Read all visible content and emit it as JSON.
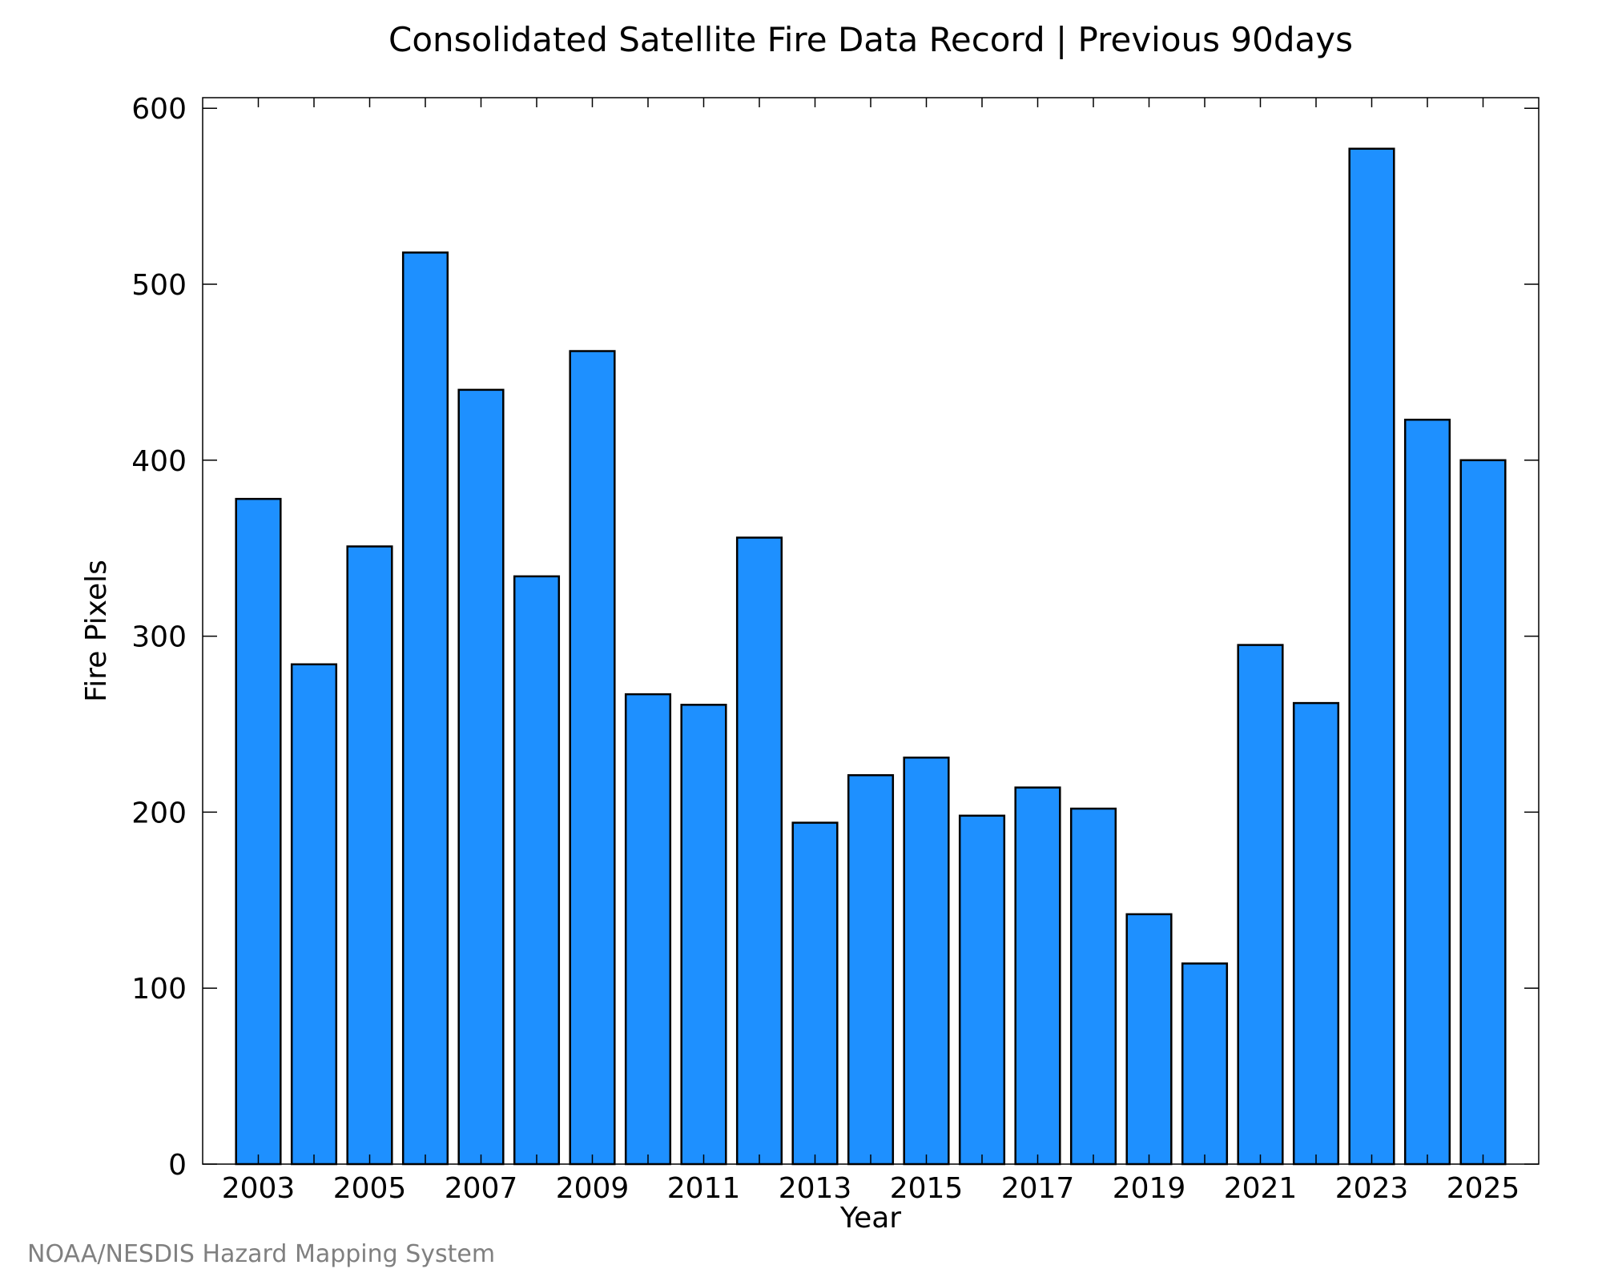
{
  "chart_data": {
    "type": "bar",
    "title": "Consolidated Satellite Fire Data Record | Previous 90days",
    "xlabel": "Year",
    "ylabel": "Fire Pixels",
    "categories": [
      "2003",
      "2004",
      "2005",
      "2006",
      "2007",
      "2008",
      "2009",
      "2010",
      "2011",
      "2012",
      "2013",
      "2014",
      "2015",
      "2016",
      "2017",
      "2018",
      "2019",
      "2020",
      "2021",
      "2022",
      "2023",
      "2024",
      "2025"
    ],
    "values": [
      378,
      284,
      351,
      518,
      440,
      334,
      462,
      267,
      261,
      356,
      194,
      221,
      231,
      198,
      214,
      202,
      142,
      114,
      295,
      262,
      577,
      423,
      400
    ],
    "x_tick_labels": [
      "2003",
      "2005",
      "2007",
      "2009",
      "2011",
      "2013",
      "2015",
      "2017",
      "2019",
      "2021",
      "2023",
      "2025"
    ],
    "y_ticks": [
      0,
      100,
      200,
      300,
      400,
      500,
      600
    ],
    "ylim": [
      0,
      606
    ],
    "xlim": [
      2002,
      2026
    ],
    "grid": false,
    "bar_color": "#1e90ff"
  },
  "credit": "NOAA/NESDIS Hazard Mapping System"
}
